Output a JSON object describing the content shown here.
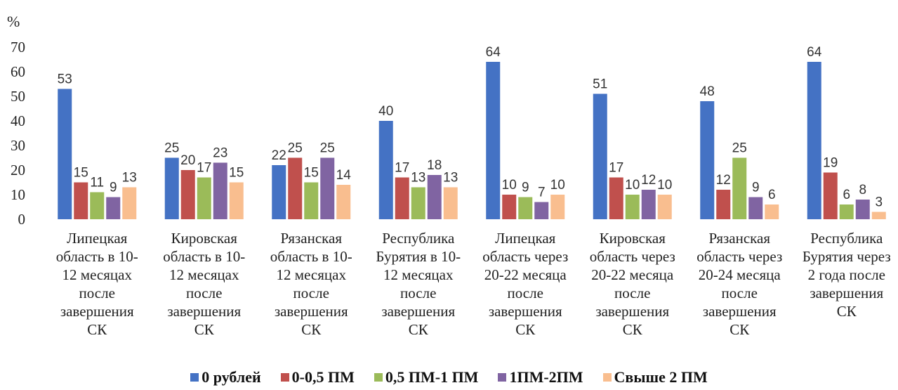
{
  "chart_data": {
    "type": "bar",
    "y_unit_label": "%",
    "ylim": [
      0,
      70
    ],
    "y_ticks": [
      0,
      10,
      20,
      30,
      40,
      50,
      60,
      70
    ],
    "grid": false,
    "legend_position": "bottom",
    "categories": [
      "Липецкая\nобласть в 10-\n12 месяцах\nпосле\nзавершения\nСК",
      "Кировская\nобласть в 10-\n12 месяцах\nпосле\nзавершения\nСК",
      "Рязанская\nобласть в 10-\n12 месяцах\nпосле\nзавершения\nСК",
      "Республика\nБурятия  в 10-\n12 месяцах\nпосле\nзавершения\nСК",
      "Липецкая\nобласть через\n20-22 месяца\nпосле\nзавершения\nСК",
      "Кировская\nобласть через\n20-22 месяца\nпосле\nзавершения\nСК",
      "Рязанская\nобласть через\n20-24 месяца\nпосле\nзавершения\nСК",
      "Республика\nБурятия  через\n2 года после\nзавершения\nСК"
    ],
    "series": [
      {
        "name": "0 рублей",
        "color": "#4472C4",
        "values": [
          53,
          25,
          22,
          40,
          64,
          51,
          48,
          64
        ]
      },
      {
        "name": "0-0,5 ПМ",
        "color": "#C0504D",
        "values": [
          15,
          20,
          25,
          17,
          10,
          17,
          12,
          19
        ]
      },
      {
        "name": "0,5 ПМ-1 ПМ",
        "color": "#9BBB59",
        "values": [
          11,
          17,
          15,
          13,
          9,
          10,
          25,
          6
        ]
      },
      {
        "name": "1ПМ-2ПМ",
        "color": "#8064A2",
        "values": [
          9,
          23,
          25,
          18,
          7,
          12,
          9,
          8
        ]
      },
      {
        "name": "Свыше 2 ПМ",
        "color": "#F9BE8F",
        "values": [
          13,
          15,
          14,
          13,
          10,
          10,
          6,
          3
        ]
      }
    ]
  }
}
